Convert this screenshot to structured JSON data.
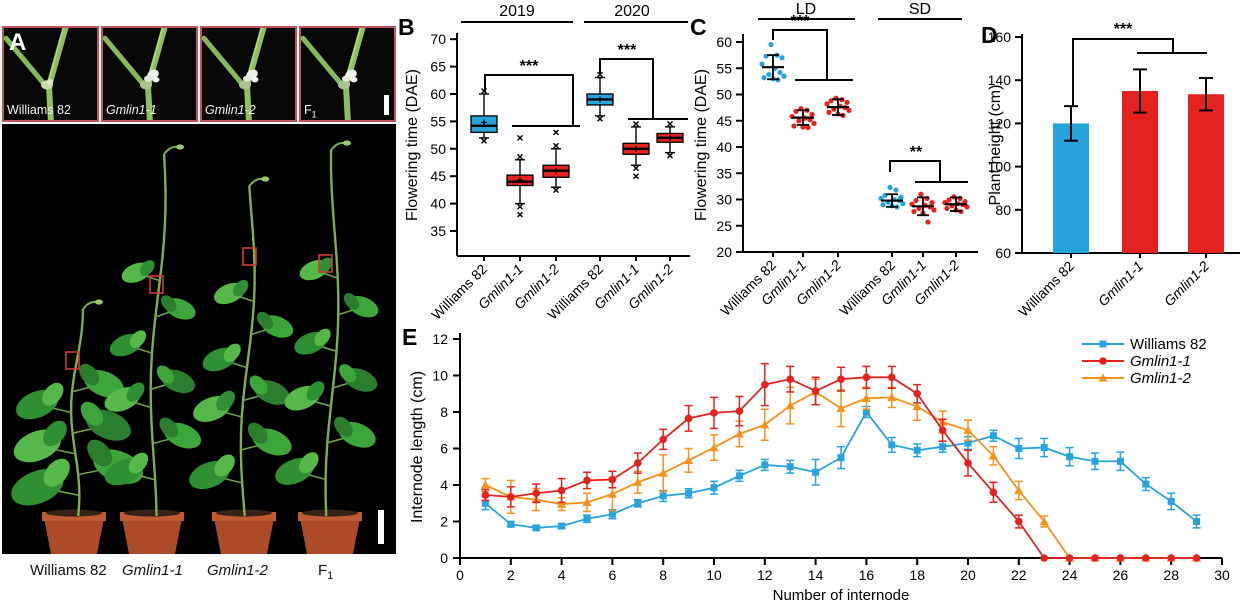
{
  "colors": {
    "blue": "#29A3DC",
    "red": "#E42320",
    "orange": "#F5921E",
    "photo_border": "#C4545C",
    "pot": "#AD4A2A"
  },
  "panel_a": {
    "label": "A",
    "photos": [
      {
        "label": "Williams 82",
        "sub": "",
        "italic": false,
        "flower": false
      },
      {
        "label": "Gmlin1-1",
        "sub": "",
        "italic": true,
        "flower": true
      },
      {
        "label": "Gmlin1-2",
        "sub": "",
        "italic": true,
        "flower": true
      },
      {
        "label": "F",
        "sub": "1",
        "italic": false,
        "flower": true
      }
    ],
    "bottom_labels": [
      {
        "text": "Williams 82",
        "sub": "",
        "italic": false
      },
      {
        "text": "Gmlin1-1",
        "sub": "",
        "italic": true
      },
      {
        "text": "Gmlin1-2",
        "sub": "",
        "italic": true
      },
      {
        "text": "F",
        "sub": "1",
        "italic": false
      }
    ]
  },
  "chart_data": [
    {
      "id": "B",
      "panel_label": "B",
      "type": "box",
      "ylabel": "Flowering time (DAE)",
      "ylim": [
        30,
        71
      ],
      "yticks": [
        35,
        40,
        45,
        50,
        55,
        60,
        65,
        70
      ],
      "groups": [
        {
          "label": "2019",
          "significance": "***"
        },
        {
          "label": "2020",
          "significance": "***"
        }
      ],
      "boxes": [
        {
          "group": "2019",
          "category": "Williams 82",
          "italic": false,
          "color": "blue",
          "q1": 53,
          "median": 54.2,
          "q3": 56,
          "mean": 54.8,
          "whisker_low": 52,
          "whisker_high": 60,
          "outliers": []
        },
        {
          "group": "2019",
          "category": "Gmlin1-1",
          "italic": true,
          "color": "red",
          "q1": 43.3,
          "median": 44,
          "q3": 45.2,
          "mean": 44.3,
          "whisker_low": 40,
          "whisker_high": 48,
          "outliers": [
            52,
            38
          ]
        },
        {
          "group": "2019",
          "category": "Gmlin1-2",
          "italic": true,
          "color": "red",
          "q1": 44.8,
          "median": 46,
          "q3": 47,
          "mean": 46,
          "whisker_low": 43,
          "whisker_high": 50,
          "outliers": [
            53
          ]
        },
        {
          "group": "2020",
          "category": "Williams 82",
          "italic": false,
          "color": "blue",
          "q1": 58,
          "median": 59,
          "q3": 60,
          "mean": 59,
          "whisker_low": 56,
          "whisker_high": 63,
          "outliers": []
        },
        {
          "group": "2020",
          "category": "Gmlin1-1",
          "italic": true,
          "color": "red",
          "q1": 49,
          "median": 50,
          "q3": 51,
          "mean": 50,
          "whisker_low": 47,
          "whisker_high": 54,
          "outliers": [
            45
          ]
        },
        {
          "group": "2020",
          "category": "Gmlin1-2",
          "italic": true,
          "color": "red",
          "q1": 51.2,
          "median": 52,
          "q3": 52.8,
          "mean": 52,
          "whisker_low": 49.3,
          "whisker_high": 54,
          "outliers": []
        }
      ]
    },
    {
      "id": "C",
      "panel_label": "C",
      "type": "scatter",
      "ylabel": "Flowering time (DAE)",
      "ylim": [
        20,
        62
      ],
      "yticks": [
        20,
        25,
        30,
        35,
        40,
        45,
        50,
        55,
        60
      ],
      "groups": [
        {
          "label": "LD",
          "significance": "***"
        },
        {
          "label": "SD",
          "significance": "**"
        }
      ],
      "series": [
        {
          "group": "LD",
          "category": "Williams 82",
          "italic": false,
          "color": "blue",
          "mean": 55.2,
          "sd": 2.3,
          "points": [
            59.5,
            57.5,
            57.3,
            57,
            55.8,
            55,
            54.2,
            53.8,
            53.5,
            53.2,
            53,
            52.8
          ]
        },
        {
          "group": "LD",
          "category": "Gmlin1-1",
          "italic": true,
          "color": "red",
          "mean": 45.6,
          "sd": 1.4,
          "points": [
            47.3,
            47,
            46.8,
            46.2,
            45.8,
            45.5,
            45.2,
            45,
            44.5,
            44,
            43.8,
            43.7
          ]
        },
        {
          "group": "LD",
          "category": "Gmlin1-2",
          "italic": true,
          "color": "red",
          "mean": 47.6,
          "sd": 1.5,
          "points": [
            49.3,
            49,
            48.8,
            48.5,
            48.2,
            47.8,
            47.5,
            47.2,
            47,
            46.6,
            46.3,
            46
          ]
        },
        {
          "group": "SD",
          "category": "Williams 82",
          "italic": false,
          "color": "blue",
          "mean": 29.8,
          "sd": 1.2,
          "points": [
            32.3,
            31.8,
            30.8,
            30.4,
            30.2,
            30,
            29.8,
            29.5,
            29.2,
            29,
            28.8,
            28.6
          ]
        },
        {
          "group": "SD",
          "category": "Gmlin1-1",
          "italic": true,
          "color": "red",
          "mean": 28.7,
          "sd": 1.7,
          "points": [
            31,
            30.2,
            29.8,
            29.4,
            29.1,
            28.9,
            28.6,
            28.3,
            28,
            27.7,
            27.4,
            25.7
          ]
        },
        {
          "group": "SD",
          "category": "Gmlin1-2",
          "italic": true,
          "color": "red",
          "mean": 29.1,
          "sd": 1.3,
          "points": [
            30.5,
            30.2,
            29.9,
            29.6,
            29.4,
            29.2,
            29,
            28.8,
            28.6,
            28.3,
            28,
            27.7
          ]
        }
      ]
    },
    {
      "id": "D",
      "panel_label": "D",
      "type": "bar",
      "ylabel": "Plant height (cm)",
      "ylim": [
        60,
        165
      ],
      "yticks": [
        60,
        80,
        100,
        120,
        140,
        160
      ],
      "significance": "***",
      "bars": [
        {
          "category": "Williams 82",
          "italic": false,
          "color": "blue",
          "value": 120,
          "error": 8
        },
        {
          "category": "Gmlin1-1",
          "italic": true,
          "color": "red",
          "value": 135,
          "error": 10
        },
        {
          "category": "Gmlin1-2",
          "italic": true,
          "color": "red",
          "value": 133.5,
          "error": 7.5
        }
      ]
    },
    {
      "id": "E",
      "panel_label": "E",
      "type": "line",
      "xlabel": "Number of internode",
      "ylabel": "Internode length (cm)",
      "xlim": [
        0,
        30
      ],
      "ylim": [
        0,
        12
      ],
      "xticks": [
        0,
        2,
        4,
        6,
        8,
        10,
        12,
        14,
        16,
        18,
        20,
        22,
        24,
        26,
        28,
        30
      ],
      "yticks": [
        0,
        2,
        4,
        6,
        8,
        10,
        12
      ],
      "legend_position": "top-right",
      "x": [
        1,
        2,
        3,
        4,
        5,
        6,
        7,
        8,
        9,
        10,
        11,
        12,
        13,
        14,
        15,
        16,
        17,
        18,
        19,
        20,
        21,
        22,
        23,
        24,
        25,
        26,
        27,
        28,
        29
      ],
      "series": [
        {
          "name": "Williams 82",
          "italic": false,
          "color": "blue",
          "marker": "square",
          "values": [
            3.0,
            1.85,
            1.65,
            1.75,
            2.15,
            2.4,
            3.0,
            3.4,
            3.55,
            3.85,
            4.5,
            5.1,
            5.0,
            4.7,
            5.5,
            8.0,
            6.2,
            5.9,
            6.1,
            6.3,
            6.7,
            6.0,
            6.05,
            5.55,
            5.3,
            5.3,
            4.05,
            3.1,
            2.0
          ],
          "errors": [
            0.35,
            0.15,
            0.12,
            0.12,
            0.2,
            0.25,
            0.2,
            0.3,
            0.25,
            0.35,
            0.3,
            0.3,
            0.35,
            0.7,
            0.6,
            0.3,
            0.4,
            0.35,
            0.3,
            0.35,
            0.3,
            0.55,
            0.5,
            0.5,
            0.45,
            0.5,
            0.35,
            0.45,
            0.35
          ]
        },
        {
          "name": "Gmlin1-1",
          "italic": true,
          "color": "red",
          "marker": "circle",
          "values": [
            3.45,
            3.35,
            3.55,
            3.7,
            4.25,
            4.3,
            5.2,
            6.5,
            7.65,
            7.95,
            8.05,
            9.5,
            9.8,
            9.15,
            9.8,
            9.9,
            9.9,
            9.0,
            7.0,
            5.2,
            3.6,
            2.0,
            0,
            0,
            0,
            0,
            0,
            0,
            0
          ],
          "errors": [
            0.3,
            0.55,
            0.5,
            0.65,
            0.45,
            0.45,
            0.55,
            0.55,
            0.7,
            0.85,
            0.8,
            1.15,
            0.7,
            0.75,
            0.65,
            0.6,
            0.6,
            0.5,
            0.6,
            0.7,
            0.55,
            0.35,
            0,
            0,
            0,
            0,
            0,
            0,
            0
          ]
        },
        {
          "name": "Gmlin1-2",
          "italic": true,
          "color": "orange",
          "marker": "triangle",
          "values": [
            4.0,
            3.35,
            3.2,
            2.95,
            3.05,
            3.5,
            4.15,
            4.65,
            5.35,
            6.05,
            6.8,
            7.3,
            8.35,
            9.1,
            8.2,
            8.75,
            8.8,
            8.3,
            7.45,
            7.0,
            5.6,
            3.7,
            2.0,
            0,
            0,
            0,
            0,
            0,
            0
          ],
          "errors": [
            0.35,
            0.9,
            0.6,
            0.35,
            0.5,
            0.9,
            0.6,
            1.0,
            0.65,
            0.7,
            0.7,
            0.85,
            1.0,
            0.7,
            1.0,
            0.6,
            0.55,
            0.75,
            0.6,
            0.55,
            0.5,
            0.5,
            0.3,
            0,
            0,
            0,
            0,
            0,
            0
          ]
        }
      ]
    }
  ]
}
